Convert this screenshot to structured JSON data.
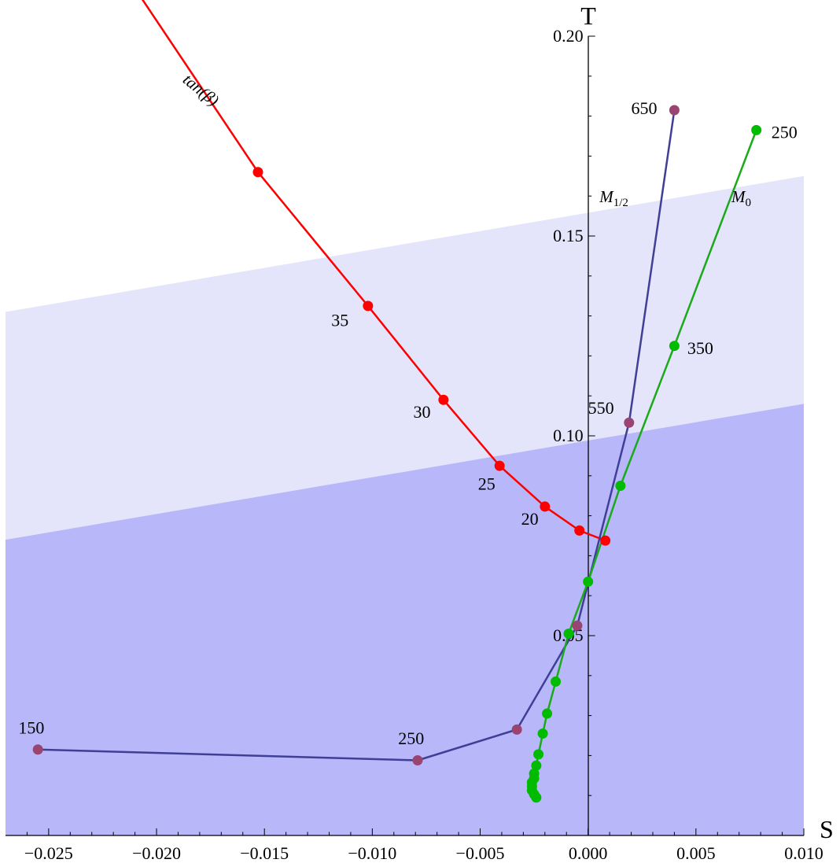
{
  "chart_data": {
    "type": "line",
    "xlabel": "S",
    "ylabel": "T",
    "xlim": [
      -0.027,
      0.01
    ],
    "ylim": [
      0.0,
      0.2
    ],
    "x_ticks": [
      -0.025,
      -0.02,
      -0.015,
      -0.01,
      -0.005,
      0.0,
      0.005,
      0.01
    ],
    "x_tick_labels": [
      "−0.025",
      "−0.020",
      "−0.015",
      "−0.010",
      "−0.005",
      "0.000",
      "0.005",
      "0.010"
    ],
    "y_ticks": [
      0.05,
      0.1,
      0.15,
      0.2
    ],
    "y_tick_labels": [
      "0.05",
      "0.10",
      "0.15",
      "0.20"
    ],
    "grid": false,
    "colors": {
      "band_outer": "#e4e4fa",
      "band_inner": "#b7b7fa",
      "tan_beta": "#ff0000",
      "m_half": "#3f3f96",
      "m_half_points": "#9a4471",
      "m0": "#1aaa1a",
      "m0_points": "#00bb00"
    },
    "bands": [
      {
        "name": "outer",
        "left": [
          -0.027,
          0.0035,
          0.131
        ],
        "right": [
          0.01,
          0.0,
          0.165
        ]
      },
      {
        "name": "inner",
        "left": [
          -0.027,
          0.0035,
          0.074
        ],
        "right": [
          0.01,
          0.0,
          0.108
        ]
      }
    ],
    "series": [
      {
        "name": "tan(β)",
        "color": "#ff0000",
        "line_extension": [
          [
            -0.0215,
            0.216
          ],
          [
            -0.0153,
            0.166
          ]
        ],
        "x": [
          -0.0153,
          -0.0102,
          -0.0067,
          -0.0041,
          -0.002,
          -0.0004,
          0.0008
        ],
        "y": [
          0.166,
          0.1325,
          0.109,
          0.0925,
          0.0823,
          0.0763,
          0.0738
        ],
        "point_labels": [
          {
            "text": "35",
            "x": -0.0115,
            "y": 0.1275
          },
          {
            "text": "30",
            "x": -0.0077,
            "y": 0.1045
          },
          {
            "text": "25",
            "x": -0.0047,
            "y": 0.0865
          },
          {
            "text": "20",
            "x": -0.0027,
            "y": 0.0778
          }
        ]
      },
      {
        "name": "M1/2",
        "color": "#3f3f96",
        "point_color": "#9a4471",
        "x": [
          -0.0255,
          -0.0079,
          -0.0033,
          -0.0005,
          0.0019,
          0.004
        ],
        "y": [
          0.0215,
          0.0188,
          0.0265,
          0.0525,
          0.1033,
          0.1815
        ],
        "point_labels": [
          {
            "text": "150",
            "x": -0.0258,
            "y": 0.0255
          },
          {
            "text": "250",
            "x": -0.0082,
            "y": 0.0228
          },
          {
            "text": "550",
            "x": 0.0006,
            "y": 0.1055
          },
          {
            "text": "650",
            "x": 0.0026,
            "y": 0.1805
          }
        ]
      },
      {
        "name": "M0",
        "color": "#1aaa1a",
        "point_color": "#00bb00",
        "x": [
          -0.0024,
          -0.0025,
          -0.0026,
          -0.0026,
          -0.0026,
          -0.0025,
          -0.0025,
          -0.0024,
          -0.0023,
          -0.0021,
          -0.0019,
          -0.0015,
          -0.0009,
          0.0,
          0.0015,
          0.004,
          0.0078
        ],
        "y": [
          0.0095,
          0.0103,
          0.0113,
          0.0123,
          0.0133,
          0.0143,
          0.0155,
          0.0175,
          0.0203,
          0.0255,
          0.0305,
          0.0385,
          0.0505,
          0.0635,
          0.0875,
          0.1225,
          0.1765
        ],
        "point_labels": [
          {
            "text": "350",
            "x": 0.0052,
            "y": 0.1205
          },
          {
            "text": "250",
            "x": 0.0091,
            "y": 0.1745
          }
        ]
      }
    ],
    "series_labels": [
      {
        "base": "tan(β)",
        "sub": "",
        "x": -0.0181,
        "y": 0.1855,
        "angle": 39
      },
      {
        "base": "M",
        "sub": "1/2",
        "x": 0.0012,
        "y": 0.1585,
        "angle": 0
      },
      {
        "base": "M",
        "sub": "0",
        "x": 0.0071,
        "y": 0.1585,
        "angle": 0
      }
    ]
  }
}
